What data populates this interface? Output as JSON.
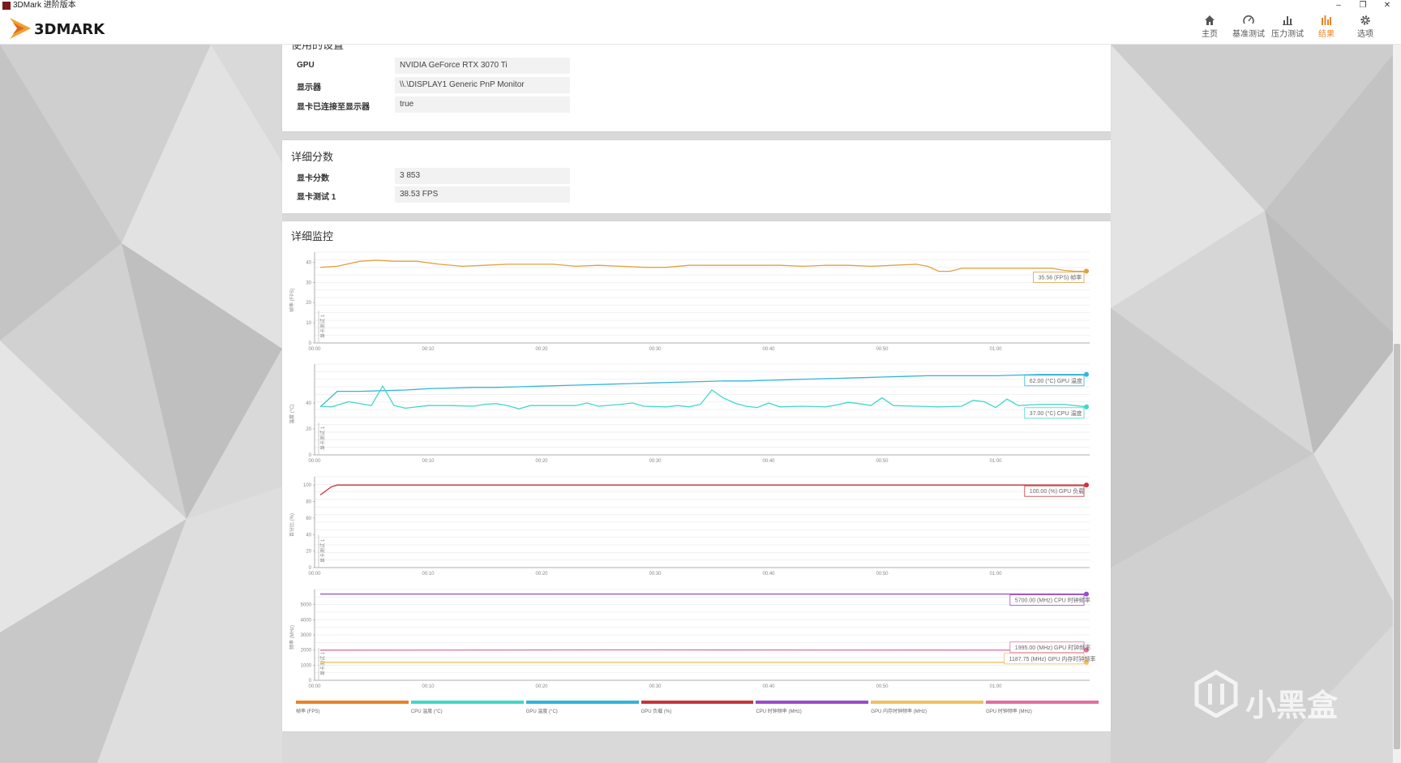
{
  "window": {
    "title": "3DMark 进阶版本",
    "minimize": "–",
    "maximize": "❐",
    "close": "✕"
  },
  "brand": {
    "logo_text": "3DMARK"
  },
  "nav": [
    {
      "label": "主页",
      "icon": "home-icon"
    },
    {
      "label": "基准测试",
      "icon": "gauge-icon"
    },
    {
      "label": "压力测试",
      "icon": "bar-chart-icon"
    },
    {
      "label": "结果",
      "icon": "results-icon",
      "active": true
    },
    {
      "label": "选项",
      "icon": "gear-icon"
    }
  ],
  "settings": {
    "title": "使用的设置",
    "rows": [
      {
        "key": "GPU",
        "value": "NVIDIA GeForce RTX 3070 Ti"
      },
      {
        "key": "显示器",
        "value": "\\\\.\\DISPLAY1 Generic PnP Monitor"
      },
      {
        "key": "显卡已连接至显示器",
        "value": "true"
      }
    ]
  },
  "scores": {
    "title": "详细分数",
    "rows": [
      {
        "key": "显卡分数",
        "value": "3 853"
      },
      {
        "key": "显卡测试 1",
        "value": "38.53 FPS"
      }
    ]
  },
  "monitor": {
    "title": "详细监控",
    "x_ticks": [
      "00:00",
      "00:10",
      "00:20",
      "00:30",
      "00:40",
      "00:50",
      "01:00"
    ],
    "vertical_marker_label": "显卡测试 1",
    "panels": [
      {
        "ylabel": "帧率 (FPS)",
        "yticks": [
          0,
          10,
          20,
          30,
          40
        ],
        "ymax": 45,
        "series": [
          {
            "color": "#e0a040",
            "tooltip": "35.56 (FPS) 帧率",
            "points": [
              [
                0.5,
                37.5
              ],
              [
                2,
                38
              ],
              [
                4,
                40.5
              ],
              [
                5.5,
                41
              ],
              [
                7,
                40.5
              ],
              [
                9,
                40.5
              ],
              [
                11,
                39
              ],
              [
                13,
                38
              ],
              [
                15,
                38.5
              ],
              [
                17,
                39
              ],
              [
                19,
                39
              ],
              [
                21,
                39
              ],
              [
                23,
                38
              ],
              [
                25,
                38.5
              ],
              [
                27,
                38
              ],
              [
                29,
                37.5
              ],
              [
                31,
                37.5
              ],
              [
                33,
                38.5
              ],
              [
                35,
                38.5
              ],
              [
                37,
                38.5
              ],
              [
                39,
                38.5
              ],
              [
                41,
                38.5
              ],
              [
                43,
                38
              ],
              [
                45,
                38.5
              ],
              [
                47,
                38.5
              ],
              [
                49,
                38
              ],
              [
                51,
                38.5
              ],
              [
                53,
                39
              ],
              [
                54,
                38
              ],
              [
                55,
                35.5
              ],
              [
                56,
                35.5
              ],
              [
                57,
                37
              ],
              [
                59,
                37
              ],
              [
                61,
                37
              ],
              [
                63,
                37
              ],
              [
                65,
                37
              ],
              [
                66,
                36
              ],
              [
                67,
                35.5
              ],
              [
                68,
                35.6
              ]
            ]
          }
        ]
      },
      {
        "ylabel": "温度 (°C)",
        "yticks": [
          0,
          20,
          40
        ],
        "ymax": 70,
        "series": [
          {
            "color": "#33b5d9",
            "tooltip": "62.00 (°C) GPU 温度",
            "points": [
              [
                0.5,
                37
              ],
              [
                2,
                49
              ],
              [
                4,
                49
              ],
              [
                6,
                49.5
              ],
              [
                8,
                50
              ],
              [
                10,
                51
              ],
              [
                12,
                51.5
              ],
              [
                14,
                52
              ],
              [
                16,
                52
              ],
              [
                18,
                52.5
              ],
              [
                20,
                53
              ],
              [
                22,
                53.5
              ],
              [
                24,
                54
              ],
              [
                26,
                54.5
              ],
              [
                28,
                55
              ],
              [
                30,
                55.5
              ],
              [
                32,
                56
              ],
              [
                34,
                56.5
              ],
              [
                36,
                57
              ],
              [
                38,
                57
              ],
              [
                40,
                57.5
              ],
              [
                42,
                58
              ],
              [
                44,
                58.5
              ],
              [
                46,
                59
              ],
              [
                48,
                59.5
              ],
              [
                50,
                60
              ],
              [
                52,
                60.5
              ],
              [
                54,
                61
              ],
              [
                56,
                61
              ],
              [
                58,
                61
              ],
              [
                60,
                61
              ],
              [
                62,
                61.5
              ],
              [
                64,
                62
              ],
              [
                66,
                62
              ],
              [
                68,
                62
              ]
            ]
          },
          {
            "color": "#40d8c8",
            "tooltip": "37.00 (°C) CPU 温度",
            "points": [
              [
                0.5,
                37.5
              ],
              [
                1.5,
                37
              ],
              [
                3,
                41
              ],
              [
                5,
                38
              ],
              [
                6,
                53
              ],
              [
                7,
                38
              ],
              [
                8,
                36
              ],
              [
                10,
                38
              ],
              [
                12,
                38
              ],
              [
                14,
                37.5
              ],
              [
                15,
                39
              ],
              [
                16,
                39.5
              ],
              [
                17,
                38
              ],
              [
                18,
                35.5
              ],
              [
                19,
                38
              ],
              [
                21,
                38
              ],
              [
                23,
                38
              ],
              [
                24,
                40
              ],
              [
                25,
                37.5
              ],
              [
                27,
                39
              ],
              [
                28,
                40
              ],
              [
                29,
                37.5
              ],
              [
                31,
                37
              ],
              [
                32,
                38
              ],
              [
                33,
                37
              ],
              [
                34,
                39
              ],
              [
                35,
                50
              ],
              [
                36,
                44
              ],
              [
                37,
                40
              ],
              [
                38,
                37.5
              ],
              [
                39,
                36.5
              ],
              [
                40,
                40
              ],
              [
                41,
                37
              ],
              [
                43,
                37.5
              ],
              [
                45,
                37
              ],
              [
                46,
                38.5
              ],
              [
                47,
                40.5
              ],
              [
                48,
                39.5
              ],
              [
                49,
                38
              ],
              [
                50,
                44
              ],
              [
                51,
                38
              ],
              [
                53,
                37.5
              ],
              [
                55,
                37
              ],
              [
                57,
                37.5
              ],
              [
                58,
                42
              ],
              [
                59,
                41
              ],
              [
                60,
                36.5
              ],
              [
                61,
                43
              ],
              [
                62,
                38
              ],
              [
                64,
                39
              ],
              [
                66,
                39
              ],
              [
                68,
                37
              ]
            ]
          }
        ]
      },
      {
        "ylabel": "百分比 (%)",
        "yticks": [
          0,
          20,
          40,
          60,
          80,
          100
        ],
        "ymax": 110,
        "series": [
          {
            "color": "#c8343c",
            "tooltip": "100.00 (%) GPU 负载",
            "points": [
              [
                0.5,
                88
              ],
              [
                1.5,
                98
              ],
              [
                2,
                100
              ],
              [
                68,
                100
              ]
            ]
          }
        ]
      },
      {
        "ylabel": "频率 (MHz)",
        "yticks": [
          0,
          1000,
          2000,
          3000,
          4000,
          5000
        ],
        "ymax": 6000,
        "series": [
          {
            "color": "#9a4cc8",
            "tooltip": "5700.00 (MHz) CPU 时钟频率",
            "points": [
              [
                0.5,
                5700
              ],
              [
                68,
                5700
              ]
            ]
          },
          {
            "color": "#e070a0",
            "tooltip": "1995.00 (MHz) GPU 时钟频率",
            "points": [
              [
                0.5,
                1995
              ],
              [
                30,
                2010
              ],
              [
                68,
                1995
              ]
            ]
          },
          {
            "color": "#f0c060",
            "tooltip": "1187.75 (MHz) GPU 内存时钟频率",
            "points": [
              [
                0.5,
                1187.75
              ],
              [
                68,
                1187.75
              ]
            ]
          }
        ]
      }
    ],
    "legend": [
      {
        "label": "帧率 (FPS)",
        "color": "#e8832a"
      },
      {
        "label": "CPU 温度 (°C)",
        "color": "#40d8c8"
      },
      {
        "label": "GPU 温度 (°C)",
        "color": "#33b5d9"
      },
      {
        "label": "GPU 负载 (%)",
        "color": "#c8343c"
      },
      {
        "label": "CPU 时钟频率 (MHz)",
        "color": "#9a4cc8"
      },
      {
        "label": "GPU 内存时钟频率 (MHz)",
        "color": "#f0c060"
      },
      {
        "label": "GPU 时钟频率 (MHz)",
        "color": "#e070a0"
      }
    ]
  },
  "watermark": {
    "text": "小黑盒"
  }
}
